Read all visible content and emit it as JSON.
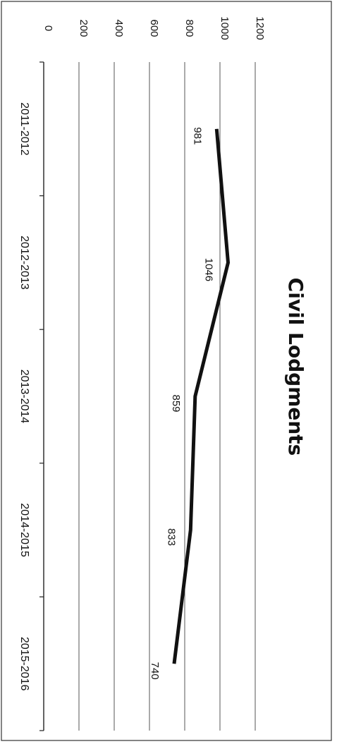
{
  "chart_data": {
    "type": "line",
    "title": "Civil Lodgments",
    "categories": [
      "2011-2012",
      "2012-2013",
      "2013-2014",
      "2014-2015",
      "2015-2016"
    ],
    "series": [
      {
        "values": [
          981,
          1046,
          859,
          833,
          740
        ],
        "labels": [
          "981",
          "1046",
          "859",
          "833",
          "740"
        ]
      }
    ],
    "y_ticks": [
      "0",
      "200",
      "400",
      "600",
      "800",
      "1000",
      "1200"
    ],
    "ylim": [
      0,
      1200
    ],
    "grid": true,
    "legend": "none",
    "orientation": "rotated 90 degrees clockwise",
    "colors": {
      "line": "#111111",
      "grid": "#555555"
    }
  }
}
